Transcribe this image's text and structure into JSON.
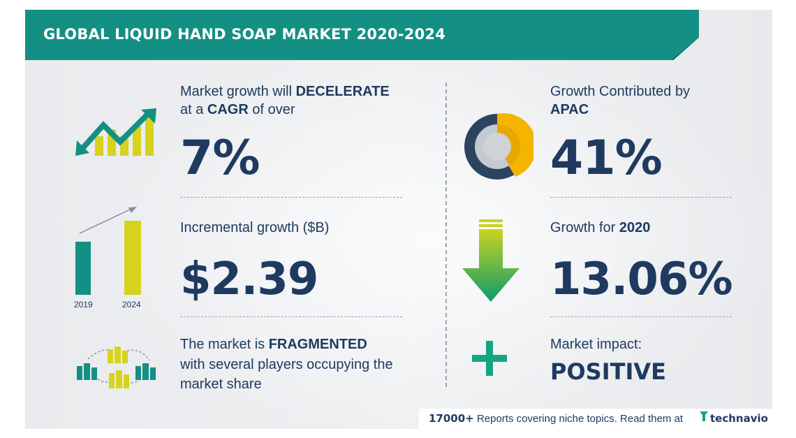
{
  "title": "GLOBAL LIQUID HAND SOAP MARKET 2020-2024",
  "colors": {
    "teal": "#138f83",
    "navy": "#1f3a60",
    "yellow": "#d6d21e",
    "amber": "#f4b400",
    "green": "#16a36b"
  },
  "stats": {
    "cagr": {
      "line1_prefix": "Market growth will ",
      "line1_emph": "DECELERATE",
      "line2_prefix": "at a ",
      "line2_emph": "CAGR",
      "line2_suffix": " of over",
      "value": "7%",
      "icon": "decline-chart-icon"
    },
    "incremental": {
      "label": "Incremental growth ($B)",
      "value": "$2.39",
      "bar_labels": [
        "2019",
        "2024"
      ],
      "icon": "growth-bars-icon"
    },
    "fragmented": {
      "line1_prefix": "The market is ",
      "line1_emph": "FRAGMENTED",
      "line2": "with several players occupying the",
      "line3": "market share",
      "icon": "buildings-network-icon"
    },
    "apac": {
      "line1": "Growth Contributed by",
      "line2": "APAC",
      "value": "41%",
      "icon": "donut-chart-icon"
    },
    "yoy": {
      "label_prefix": "Growth for ",
      "label_emph": "2020",
      "value": "13.06%",
      "icon": "down-arrow-icon"
    },
    "impact": {
      "label": "Market impact:",
      "value": "POSITIVE",
      "icon": "plus-icon"
    }
  },
  "footer": {
    "count": "17000+",
    "text": "Reports covering niche topics. Read them at",
    "brand": "technavio",
    "logo_icon": "technavio-logo-icon"
  }
}
